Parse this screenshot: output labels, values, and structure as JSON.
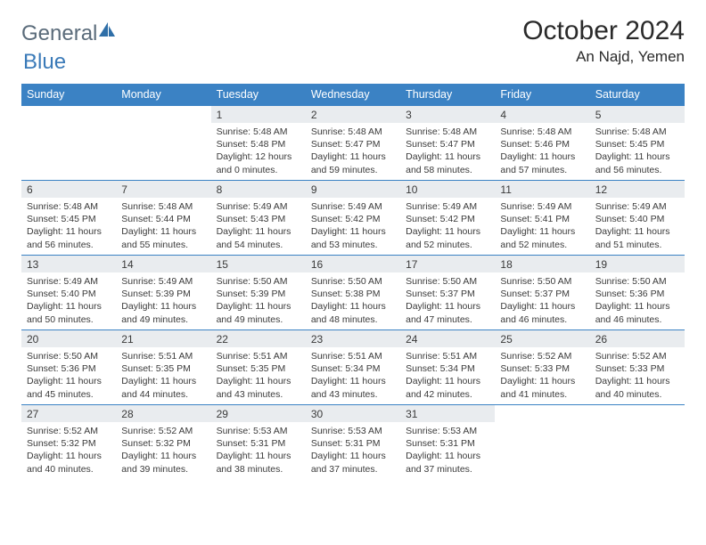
{
  "brand": {
    "part1": "General",
    "part2": "Blue"
  },
  "header": {
    "title": "October 2024",
    "location": "An Najd, Yemen"
  },
  "colors": {
    "header_bg": "#3b82c4",
    "header_text": "#ffffff",
    "daynum_bg": "#e9ecef",
    "cell_border": "#3b82c4",
    "body_text": "#3a3a3a",
    "brand_gray": "#5a6b7a",
    "brand_blue": "#3a7ab8"
  },
  "daynames": [
    "Sunday",
    "Monday",
    "Tuesday",
    "Wednesday",
    "Thursday",
    "Friday",
    "Saturday"
  ],
  "weeks": [
    [
      {
        "empty": true
      },
      {
        "empty": true
      },
      {
        "n": "1",
        "sr": "5:48 AM",
        "ss": "5:48 PM",
        "dl": "12 hours and 0 minutes."
      },
      {
        "n": "2",
        "sr": "5:48 AM",
        "ss": "5:47 PM",
        "dl": "11 hours and 59 minutes."
      },
      {
        "n": "3",
        "sr": "5:48 AM",
        "ss": "5:47 PM",
        "dl": "11 hours and 58 minutes."
      },
      {
        "n": "4",
        "sr": "5:48 AM",
        "ss": "5:46 PM",
        "dl": "11 hours and 57 minutes."
      },
      {
        "n": "5",
        "sr": "5:48 AM",
        "ss": "5:45 PM",
        "dl": "11 hours and 56 minutes."
      }
    ],
    [
      {
        "n": "6",
        "sr": "5:48 AM",
        "ss": "5:45 PM",
        "dl": "11 hours and 56 minutes."
      },
      {
        "n": "7",
        "sr": "5:48 AM",
        "ss": "5:44 PM",
        "dl": "11 hours and 55 minutes."
      },
      {
        "n": "8",
        "sr": "5:49 AM",
        "ss": "5:43 PM",
        "dl": "11 hours and 54 minutes."
      },
      {
        "n": "9",
        "sr": "5:49 AM",
        "ss": "5:42 PM",
        "dl": "11 hours and 53 minutes."
      },
      {
        "n": "10",
        "sr": "5:49 AM",
        "ss": "5:42 PM",
        "dl": "11 hours and 52 minutes."
      },
      {
        "n": "11",
        "sr": "5:49 AM",
        "ss": "5:41 PM",
        "dl": "11 hours and 52 minutes."
      },
      {
        "n": "12",
        "sr": "5:49 AM",
        "ss": "5:40 PM",
        "dl": "11 hours and 51 minutes."
      }
    ],
    [
      {
        "n": "13",
        "sr": "5:49 AM",
        "ss": "5:40 PM",
        "dl": "11 hours and 50 minutes."
      },
      {
        "n": "14",
        "sr": "5:49 AM",
        "ss": "5:39 PM",
        "dl": "11 hours and 49 minutes."
      },
      {
        "n": "15",
        "sr": "5:50 AM",
        "ss": "5:39 PM",
        "dl": "11 hours and 49 minutes."
      },
      {
        "n": "16",
        "sr": "5:50 AM",
        "ss": "5:38 PM",
        "dl": "11 hours and 48 minutes."
      },
      {
        "n": "17",
        "sr": "5:50 AM",
        "ss": "5:37 PM",
        "dl": "11 hours and 47 minutes."
      },
      {
        "n": "18",
        "sr": "5:50 AM",
        "ss": "5:37 PM",
        "dl": "11 hours and 46 minutes."
      },
      {
        "n": "19",
        "sr": "5:50 AM",
        "ss": "5:36 PM",
        "dl": "11 hours and 46 minutes."
      }
    ],
    [
      {
        "n": "20",
        "sr": "5:50 AM",
        "ss": "5:36 PM",
        "dl": "11 hours and 45 minutes."
      },
      {
        "n": "21",
        "sr": "5:51 AM",
        "ss": "5:35 PM",
        "dl": "11 hours and 44 minutes."
      },
      {
        "n": "22",
        "sr": "5:51 AM",
        "ss": "5:35 PM",
        "dl": "11 hours and 43 minutes."
      },
      {
        "n": "23",
        "sr": "5:51 AM",
        "ss": "5:34 PM",
        "dl": "11 hours and 43 minutes."
      },
      {
        "n": "24",
        "sr": "5:51 AM",
        "ss": "5:34 PM",
        "dl": "11 hours and 42 minutes."
      },
      {
        "n": "25",
        "sr": "5:52 AM",
        "ss": "5:33 PM",
        "dl": "11 hours and 41 minutes."
      },
      {
        "n": "26",
        "sr": "5:52 AM",
        "ss": "5:33 PM",
        "dl": "11 hours and 40 minutes."
      }
    ],
    [
      {
        "n": "27",
        "sr": "5:52 AM",
        "ss": "5:32 PM",
        "dl": "11 hours and 40 minutes."
      },
      {
        "n": "28",
        "sr": "5:52 AM",
        "ss": "5:32 PM",
        "dl": "11 hours and 39 minutes."
      },
      {
        "n": "29",
        "sr": "5:53 AM",
        "ss": "5:31 PM",
        "dl": "11 hours and 38 minutes."
      },
      {
        "n": "30",
        "sr": "5:53 AM",
        "ss": "5:31 PM",
        "dl": "11 hours and 37 minutes."
      },
      {
        "n": "31",
        "sr": "5:53 AM",
        "ss": "5:31 PM",
        "dl": "11 hours and 37 minutes."
      },
      {
        "empty": true
      },
      {
        "empty": true
      }
    ]
  ],
  "labels": {
    "sunrise": "Sunrise: ",
    "sunset": "Sunset: ",
    "daylight": "Daylight: "
  }
}
